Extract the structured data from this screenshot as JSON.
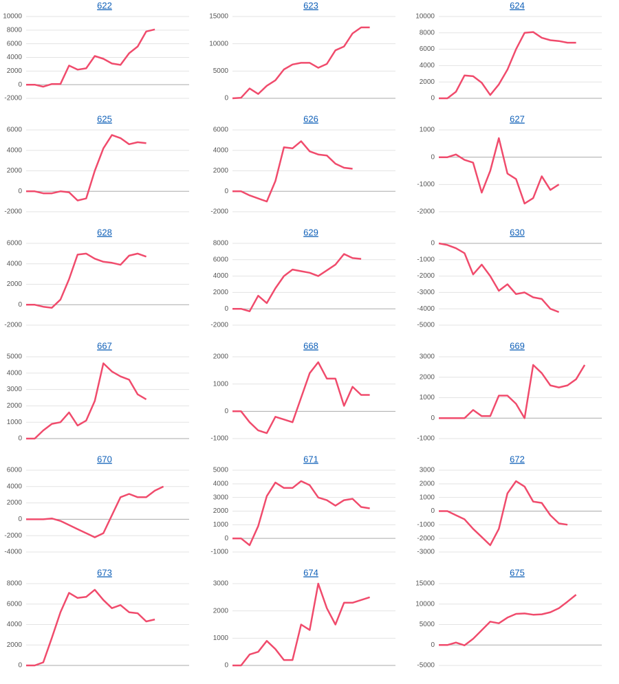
{
  "chart_data": [
    {
      "type": "line",
      "title": "622",
      "color": "#f04b6c",
      "ylim": [
        -2000,
        10000
      ],
      "yticks": [
        -2000,
        0,
        2000,
        4000,
        6000,
        8000,
        10000
      ],
      "values": [
        0,
        0,
        -300,
        100,
        100,
        2800,
        2200,
        2400,
        4200,
        3800,
        3100,
        2900,
        4600,
        5600,
        7800,
        8100
      ]
    },
    {
      "type": "line",
      "title": "623",
      "color": "#f04b6c",
      "ylim": [
        0,
        15000
      ],
      "yticks": [
        0,
        5000,
        10000,
        15000
      ],
      "values": [
        0,
        100,
        1800,
        800,
        2300,
        3300,
        5300,
        6200,
        6500,
        6500,
        5600,
        6300,
        8800,
        9500,
        11900,
        13000,
        13000
      ]
    },
    {
      "type": "line",
      "title": "624",
      "color": "#f04b6c",
      "ylim": [
        0,
        10000
      ],
      "yticks": [
        0,
        2000,
        4000,
        6000,
        8000,
        10000
      ],
      "values": [
        0,
        0,
        800,
        2800,
        2700,
        1900,
        400,
        1700,
        3500,
        6000,
        8000,
        8100,
        7400,
        7100,
        7000,
        6800,
        6800
      ]
    },
    {
      "type": "line",
      "title": "625",
      "color": "#f04b6c",
      "ylim": [
        -2000,
        6000
      ],
      "yticks": [
        -2000,
        0,
        2000,
        4000,
        6000
      ],
      "values": [
        0,
        0,
        -200,
        -200,
        0,
        -100,
        -900,
        -700,
        2000,
        4200,
        5500,
        5200,
        4600,
        4800,
        4700
      ]
    },
    {
      "type": "line",
      "title": "626",
      "color": "#f04b6c",
      "ylim": [
        -2000,
        6000
      ],
      "yticks": [
        -2000,
        0,
        2000,
        4000,
        6000
      ],
      "values": [
        0,
        0,
        -400,
        -700,
        -1000,
        1000,
        4300,
        4200,
        4900,
        3900,
        3600,
        3500,
        2700,
        2300,
        2200
      ]
    },
    {
      "type": "line",
      "title": "627",
      "color": "#f04b6c",
      "ylim": [
        -2000,
        1000
      ],
      "yticks": [
        -2000,
        -1000,
        0,
        1000
      ],
      "values": [
        0,
        0,
        100,
        -100,
        -200,
        -1300,
        -500,
        700,
        -600,
        -800,
        -1700,
        -1500,
        -700,
        -1200,
        -1000
      ]
    },
    {
      "type": "line",
      "title": "628",
      "color": "#f04b6c",
      "ylim": [
        -2000,
        6000
      ],
      "yticks": [
        -2000,
        0,
        2000,
        4000,
        6000
      ],
      "values": [
        0,
        0,
        -200,
        -300,
        500,
        2500,
        4900,
        5000,
        4500,
        4200,
        4100,
        3900,
        4800,
        5000,
        4700
      ]
    },
    {
      "type": "line",
      "title": "629",
      "color": "#f04b6c",
      "ylim": [
        -2000,
        8000
      ],
      "yticks": [
        -2000,
        0,
        2000,
        4000,
        6000,
        8000
      ],
      "values": [
        0,
        0,
        -300,
        1600,
        700,
        2500,
        4000,
        4800,
        4600,
        4400,
        4000,
        4700,
        5400,
        6700,
        6200,
        6100
      ]
    },
    {
      "type": "line",
      "title": "630",
      "color": "#f04b6c",
      "ylim": [
        -5000,
        0
      ],
      "yticks": [
        -5000,
        -4000,
        -3000,
        -2000,
        -1000,
        0
      ],
      "values": [
        0,
        -100,
        -300,
        -600,
        -1900,
        -1300,
        -2000,
        -2900,
        -2500,
        -3100,
        -3000,
        -3300,
        -3400,
        -4000,
        -4200
      ]
    },
    {
      "type": "line",
      "title": "667",
      "color": "#f04b6c",
      "ylim": [
        0,
        5000
      ],
      "yticks": [
        0,
        1000,
        2000,
        3000,
        4000,
        5000
      ],
      "values": [
        0,
        0,
        500,
        900,
        1000,
        1600,
        800,
        1100,
        2300,
        4600,
        4100,
        3800,
        3600,
        2700,
        2400
      ]
    },
    {
      "type": "line",
      "title": "668",
      "color": "#f04b6c",
      "ylim": [
        -1000,
        2000
      ],
      "yticks": [
        -1000,
        0,
        1000,
        2000
      ],
      "values": [
        0,
        0,
        -400,
        -700,
        -800,
        -200,
        -300,
        -400,
        500,
        1400,
        1800,
        1200,
        1200,
        200,
        900,
        600,
        600
      ]
    },
    {
      "type": "line",
      "title": "669",
      "color": "#f04b6c",
      "ylim": [
        -1000,
        3000
      ],
      "yticks": [
        -1000,
        0,
        1000,
        2000,
        3000
      ],
      "values": [
        0,
        0,
        0,
        0,
        400,
        100,
        100,
        1100,
        1100,
        700,
        0,
        2600,
        2200,
        1600,
        1500,
        1600,
        1900,
        2600
      ]
    },
    {
      "type": "line",
      "title": "670",
      "color": "#f04b6c",
      "ylim": [
        -4000,
        6000
      ],
      "yticks": [
        -4000,
        -2000,
        0,
        2000,
        4000,
        6000
      ],
      "values": [
        0,
        0,
        0,
        100,
        -200,
        -700,
        -1200,
        -1700,
        -2200,
        -1700,
        500,
        2700,
        3100,
        2700,
        2700,
        3500,
        4000
      ]
    },
    {
      "type": "line",
      "title": "671",
      "color": "#f04b6c",
      "ylim": [
        -1000,
        5000
      ],
      "yticks": [
        -1000,
        0,
        1000,
        2000,
        3000,
        4000,
        5000
      ],
      "values": [
        0,
        0,
        -500,
        900,
        3100,
        4100,
        3700,
        3700,
        4200,
        3900,
        3000,
        2800,
        2400,
        2800,
        2900,
        2300,
        2200
      ]
    },
    {
      "type": "line",
      "title": "672",
      "color": "#f04b6c",
      "ylim": [
        -3000,
        3000
      ],
      "yticks": [
        -3000,
        -2000,
        -1000,
        0,
        1000,
        2000,
        3000
      ],
      "values": [
        0,
        0,
        -300,
        -600,
        -1300,
        -1900,
        -2500,
        -1300,
        1300,
        2200,
        1800,
        700,
        600,
        -300,
        -900,
        -1000
      ]
    },
    {
      "type": "line",
      "title": "673",
      "color": "#f04b6c",
      "ylim": [
        0,
        8000
      ],
      "yticks": [
        0,
        2000,
        4000,
        6000,
        8000
      ],
      "values": [
        0,
        0,
        300,
        2700,
        5200,
        7100,
        6600,
        6700,
        7400,
        6400,
        5600,
        5900,
        5200,
        5100,
        4300,
        4500
      ]
    },
    {
      "type": "line",
      "title": "674",
      "color": "#f04b6c",
      "ylim": [
        0,
        3000
      ],
      "yticks": [
        0,
        1000,
        2000,
        3000
      ],
      "values": [
        0,
        0,
        400,
        500,
        900,
        600,
        200,
        200,
        1500,
        1300,
        3000,
        2100,
        1500,
        2300,
        2300,
        2400,
        2500
      ]
    },
    {
      "type": "line",
      "title": "675",
      "color": "#f04b6c",
      "ylim": [
        -5000,
        15000
      ],
      "yticks": [
        -5000,
        0,
        5000,
        10000,
        15000
      ],
      "values": [
        0,
        0,
        600,
        -100,
        1500,
        3600,
        5700,
        5300,
        6700,
        7600,
        7700,
        7400,
        7500,
        8000,
        9000,
        10600,
        12300
      ]
    }
  ]
}
